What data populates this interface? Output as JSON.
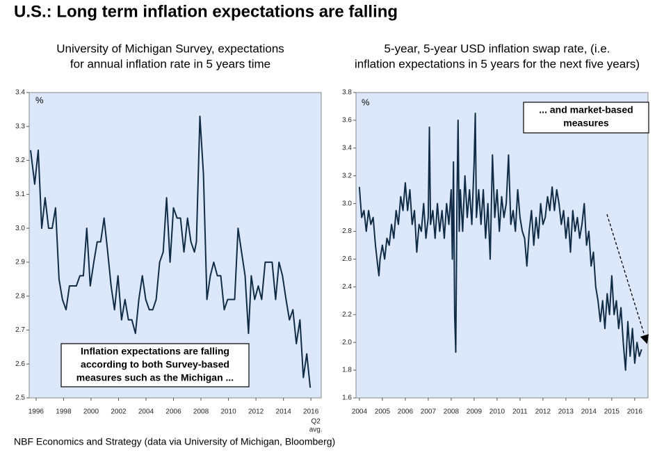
{
  "title": "U.S.: Long term inflation expectations are falling",
  "source": "NBF Economics and Strategy (data via University of Michigan, Bloomberg)",
  "chart_data": [
    {
      "type": "line",
      "title": [
        "University of Michigan Survey, expectations",
        "for annual inflation rate in 5 years time"
      ],
      "unit_label": "%",
      "note": [
        "Inflation expectations are falling",
        "according to both Survey-based",
        "measures such as the Michigan ..."
      ],
      "x_note": [
        "Q2",
        "avg."
      ],
      "color": "#0f2b46",
      "background": "#dce8f9",
      "xlim": [
        1995.5,
        2016.75
      ],
      "xticks": [
        1996,
        1998,
        2000,
        2002,
        2004,
        2006,
        2008,
        2010,
        2012,
        2014,
        2016
      ],
      "ylim": [
        2.5,
        3.4
      ],
      "yticks": [
        2.5,
        2.6,
        2.7,
        2.8,
        2.9,
        {
          "value": 3.0,
          "label": "3.0"
        },
        3.1,
        3.2,
        3.3,
        3.4
      ],
      "x": [
        1995.6,
        1995.9,
        1996.16,
        1996.41,
        1996.66,
        1996.91,
        1997.17,
        1997.42,
        1997.67,
        1997.92,
        1998.18,
        1998.43,
        1998.93,
        1999.19,
        1999.44,
        1999.69,
        1999.94,
        2000.2,
        2000.45,
        2000.7,
        2000.95,
        2001.21,
        2001.46,
        2001.71,
        2001.96,
        2002.22,
        2002.47,
        2002.72,
        2002.97,
        2003.23,
        2003.48,
        2003.73,
        2003.98,
        2004.24,
        2004.49,
        2004.74,
        2004.99,
        2005.25,
        2005.5,
        2005.75,
        2006.0,
        2006.26,
        2006.51,
        2006.76,
        2007.02,
        2007.27,
        2007.52,
        2007.67,
        2007.92,
        2008.18,
        2008.43,
        2008.68,
        2008.93,
        2009.19,
        2009.44,
        2009.69,
        2009.94,
        2010.2,
        2010.45,
        2010.7,
        2010.95,
        2011.21,
        2011.46,
        2011.66,
        2011.91,
        2012.17,
        2012.42,
        2012.67,
        2012.92,
        2013.18,
        2013.43,
        2013.68,
        2013.93,
        2014.19,
        2014.44,
        2014.69,
        2014.94,
        2015.2,
        2015.45,
        2015.7,
        2015.95
      ],
      "values": [
        3.23,
        3.13,
        3.23,
        3.0,
        3.09,
        3.0,
        3.0,
        3.06,
        2.85,
        2.79,
        2.76,
        2.83,
        2.83,
        2.86,
        2.86,
        3.0,
        2.83,
        2.9,
        2.96,
        2.96,
        3.03,
        2.93,
        2.83,
        2.76,
        2.86,
        2.73,
        2.79,
        2.73,
        2.73,
        2.69,
        2.79,
        2.86,
        2.79,
        2.76,
        2.76,
        2.79,
        2.9,
        2.93,
        3.09,
        2.9,
        3.06,
        3.03,
        3.03,
        2.93,
        3.03,
        2.96,
        2.93,
        2.96,
        3.33,
        3.16,
        2.79,
        2.86,
        2.9,
        2.86,
        2.86,
        2.76,
        2.79,
        2.79,
        2.79,
        3.0,
        2.93,
        2.86,
        2.69,
        2.86,
        2.79,
        2.83,
        2.79,
        2.9,
        2.9,
        2.9,
        2.79,
        2.9,
        2.86,
        2.79,
        2.73,
        2.76,
        2.66,
        2.73,
        2.56,
        2.63,
        2.53
      ]
    },
    {
      "type": "line",
      "title": [
        "5-year, 5-year USD inflation swap rate, (i.e.",
        "inflation expectations in 5 years for the next five years)"
      ],
      "unit_label": "%",
      "note": [
        "... and market-based",
        "measures"
      ],
      "color": "#0f2b46",
      "background": "#dce8f9",
      "xlim": [
        2003.85,
        2016.58
      ],
      "xticks": [
        2004,
        2005,
        2006,
        2007,
        2008,
        2009,
        2010,
        2011,
        2012,
        2013,
        2014,
        2015,
        2016
      ],
      "ylim": [
        1.6,
        3.8
      ],
      "yticks": [
        1.6,
        1.8,
        {
          "value": 2.0,
          "label": "2.0"
        },
        2.2,
        2.4,
        2.6,
        2.8,
        {
          "value": 3.0,
          "label": "3.0"
        },
        3.2,
        3.4,
        3.6,
        3.8
      ],
      "x": [
        2004.0,
        2004.05,
        2004.1,
        2004.2,
        2004.3,
        2004.4,
        2004.5,
        2004.6,
        2004.7,
        2004.8,
        2004.85,
        2004.9,
        2005.0,
        2005.1,
        2005.2,
        2005.3,
        2005.4,
        2005.5,
        2005.6,
        2005.7,
        2005.8,
        2005.9,
        2006.0,
        2006.1,
        2006.2,
        2006.3,
        2006.4,
        2006.5,
        2006.6,
        2006.7,
        2006.8,
        2006.9,
        2007.0,
        2007.05,
        2007.1,
        2007.2,
        2007.3,
        2007.4,
        2007.5,
        2007.6,
        2007.7,
        2007.8,
        2007.9,
        2008.0,
        2008.05,
        2008.1,
        2008.15,
        2008.2,
        2008.25,
        2008.3,
        2008.35,
        2008.4,
        2008.5,
        2008.6,
        2008.7,
        2008.8,
        2008.9,
        2009.0,
        2009.05,
        2009.1,
        2009.2,
        2009.3,
        2009.4,
        2009.5,
        2009.6,
        2009.7,
        2009.8,
        2009.9,
        2010.0,
        2010.1,
        2010.2,
        2010.3,
        2010.4,
        2010.5,
        2010.6,
        2010.7,
        2010.8,
        2010.9,
        2011.0,
        2011.1,
        2011.2,
        2011.3,
        2011.4,
        2011.5,
        2011.6,
        2011.7,
        2011.8,
        2011.9,
        2012.0,
        2012.1,
        2012.2,
        2012.3,
        2012.4,
        2012.5,
        2012.6,
        2012.7,
        2012.8,
        2012.9,
        2013.0,
        2013.1,
        2013.2,
        2013.3,
        2013.4,
        2013.5,
        2013.6,
        2013.7,
        2013.8,
        2013.9,
        2014.0,
        2014.1,
        2014.2,
        2014.3,
        2014.4,
        2014.5,
        2014.6,
        2014.7,
        2014.8,
        2014.9,
        2015.0,
        2015.1,
        2015.2,
        2015.3,
        2015.4,
        2015.5,
        2015.6,
        2015.7,
        2015.8,
        2015.9,
        2016.0,
        2016.1,
        2016.2,
        2016.3
      ],
      "values": [
        3.12,
        3.0,
        2.9,
        2.95,
        2.8,
        2.95,
        2.85,
        2.9,
        2.7,
        2.55,
        2.48,
        2.6,
        2.7,
        2.6,
        2.75,
        2.7,
        2.85,
        2.75,
        2.95,
        2.85,
        3.05,
        2.95,
        3.15,
        2.95,
        3.1,
        2.85,
        2.95,
        2.65,
        2.85,
        2.8,
        3.0,
        2.75,
        2.9,
        3.55,
        2.85,
        2.95,
        2.75,
        3.0,
        2.8,
        2.95,
        2.75,
        3.0,
        2.85,
        3.1,
        2.6,
        3.3,
        2.2,
        1.93,
        3.0,
        3.6,
        2.8,
        3.1,
        2.8,
        3.2,
        2.9,
        3.1,
        2.85,
        3.3,
        3.65,
        2.9,
        3.1,
        2.85,
        3.1,
        2.75,
        3.0,
        2.6,
        3.35,
        2.9,
        3.1,
        2.8,
        3.05,
        2.9,
        3.0,
        3.35,
        2.85,
        2.95,
        2.8,
        3.1,
        2.9,
        2.8,
        2.75,
        2.55,
        2.8,
        2.95,
        2.7,
        2.9,
        2.75,
        3.0,
        2.85,
        2.9,
        3.05,
        2.95,
        3.12,
        2.95,
        3.1,
        3.0,
        2.85,
        2.95,
        2.75,
        2.9,
        2.65,
        2.95,
        2.8,
        2.9,
        2.75,
        2.85,
        3.0,
        2.7,
        2.8,
        2.55,
        2.65,
        2.4,
        2.3,
        2.15,
        2.3,
        2.1,
        2.35,
        2.2,
        2.48,
        2.2,
        2.3,
        2.1,
        2.25,
        2.0,
        1.8,
        2.15,
        1.9,
        2.1,
        1.85,
        2.0,
        1.9,
        1.95
      ]
    }
  ]
}
